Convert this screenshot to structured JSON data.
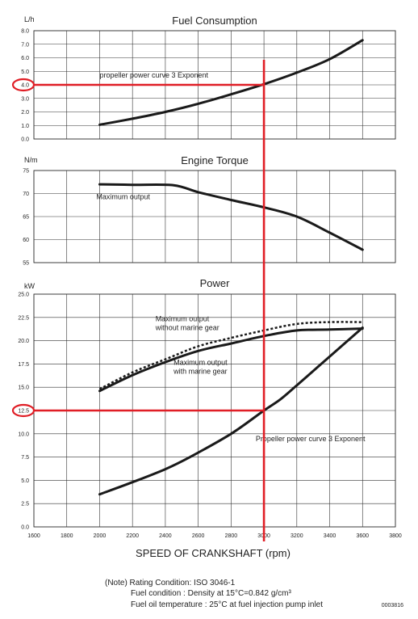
{
  "chart_data": {
    "x_axis": {
      "label": "SPEED OF CRANKSHAFT (rpm)",
      "min": 1600,
      "max": 3800,
      "ticks": [
        1600,
        1800,
        2000,
        2200,
        2400,
        2600,
        2800,
        3000,
        3200,
        3400,
        3600,
        3800
      ],
      "grid": true
    },
    "charts": [
      {
        "id": "fuel",
        "type": "line",
        "title": "Fuel Consumption",
        "unit": "L/h",
        "ylim": [
          0,
          8
        ],
        "yticks": [
          "0.0",
          "1.0",
          "2.0",
          "3.0",
          "4.0",
          "5.0",
          "6.0",
          "7.0",
          "8.0"
        ],
        "series": [
          {
            "name": "propeller power curve 3 Exponent",
            "style": "solid",
            "points": [
              [
                2000,
                1.05
              ],
              [
                2200,
                1.5
              ],
              [
                2400,
                2.0
              ],
              [
                2600,
                2.6
              ],
              [
                2800,
                3.3
              ],
              [
                3000,
                4.05
              ],
              [
                3200,
                4.9
              ],
              [
                3400,
                5.9
              ],
              [
                3600,
                7.3
              ]
            ]
          }
        ],
        "annotations": [
          {
            "text": "propeller power curve 3 Exponent",
            "x": 2000,
            "y": 4.55
          }
        ],
        "highlight": {
          "value": "4.0",
          "y": 4.0
        }
      },
      {
        "id": "torque",
        "type": "line",
        "title": "Engine Torque",
        "unit": "N/m",
        "ylim": [
          55,
          75
        ],
        "yticks": [
          "55",
          "60",
          "65",
          "70",
          "75"
        ],
        "series": [
          {
            "name": "Maximum output",
            "style": "solid",
            "points": [
              [
                2000,
                72
              ],
              [
                2200,
                71.9
              ],
              [
                2450,
                71.8
              ],
              [
                2600,
                70.3
              ],
              [
                2800,
                68.6
              ],
              [
                3000,
                67
              ],
              [
                3200,
                65
              ],
              [
                3400,
                61.5
              ],
              [
                3600,
                57.8
              ]
            ]
          }
        ],
        "annotations": [
          {
            "text": "Maximum output",
            "x": 1980,
            "y": 68.8
          }
        ]
      },
      {
        "id": "power",
        "type": "line",
        "title": "Power",
        "unit": "kW",
        "ylim": [
          0,
          25
        ],
        "yticks": [
          "0.0",
          "2.5",
          "5.0",
          "7.5",
          "10.0",
          "12.5",
          "15.0",
          "17.5",
          "20.0",
          "22.5",
          "25.0"
        ],
        "series": [
          {
            "name": "Maximum output without marine gear",
            "style": "dashed",
            "points": [
              [
                2000,
                14.8
              ],
              [
                2200,
                16.6
              ],
              [
                2400,
                18.0
              ],
              [
                2600,
                19.4
              ],
              [
                2800,
                20.3
              ],
              [
                3000,
                21.1
              ],
              [
                3200,
                21.8
              ],
              [
                3400,
                22.0
              ],
              [
                3600,
                22.0
              ]
            ]
          },
          {
            "name": "Maximum output with marine gear",
            "style": "solid",
            "points": [
              [
                2000,
                14.6
              ],
              [
                2200,
                16.3
              ],
              [
                2400,
                17.7
              ],
              [
                2600,
                18.9
              ],
              [
                2800,
                19.7
              ],
              [
                3000,
                20.5
              ],
              [
                3200,
                21.1
              ],
              [
                3400,
                21.2
              ],
              [
                3600,
                21.3
              ]
            ]
          },
          {
            "name": "Propeller power curve 3 Exponent",
            "style": "solid",
            "points": [
              [
                2000,
                3.5
              ],
              [
                2200,
                4.8
              ],
              [
                2400,
                6.2
              ],
              [
                2550,
                7.5
              ],
              [
                2800,
                10.0
              ],
              [
                3000,
                12.5
              ],
              [
                3100,
                13.7
              ],
              [
                3200,
                15.2
              ],
              [
                3400,
                18.3
              ],
              [
                3600,
                21.4
              ]
            ]
          }
        ],
        "annotations": [
          {
            "text": "Maximum output",
            "x": 2340,
            "y": 22.1,
            "lines": [
              "Maximum output",
              "without marine gear"
            ]
          },
          {
            "text": "Maximum output with marine gear",
            "x": 2450,
            "y": 17.4,
            "lines": [
              "Maximum output",
              "with marine gear"
            ]
          },
          {
            "text": "Propeller power curve 3 Exponent",
            "x": 2950,
            "y": 9.2
          }
        ],
        "highlight": {
          "value": "12.5",
          "y": 12.5
        }
      }
    ],
    "marker": {
      "rpm": 3000,
      "color": "#e01e26"
    }
  },
  "notes": {
    "line1": "(Note) Rating Condition: ISO 3046-1",
    "line2": "Fuel condition : Density at 15°C=0.842 g/cm³",
    "line3": "Fuel oil temperature : 25°C at fuel injection pump inlet"
  },
  "doc_code": "0003816"
}
